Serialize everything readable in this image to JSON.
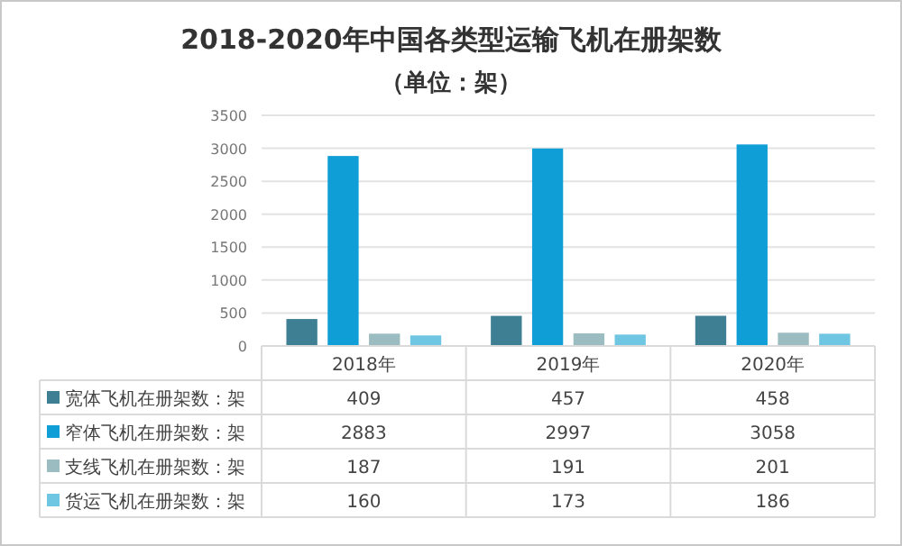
{
  "chart_data": {
    "type": "bar",
    "title": "2018-2020年中国各类型运输飞机在册架数",
    "subtitle": "（单位：架）",
    "categories": [
      "2018年",
      "2019年",
      "2020年"
    ],
    "series": [
      {
        "name": "宽体飞机在册架数：架",
        "color": "#3f7f93",
        "values": [
          409,
          457,
          458
        ]
      },
      {
        "name": "窄体飞机在册架数：架",
        "color": "#0f9ed5",
        "values": [
          2883,
          2997,
          3058
        ]
      },
      {
        "name": "支线飞机在册架数：架",
        "color": "#9bbcc0",
        "values": [
          187,
          191,
          201
        ]
      },
      {
        "name": "货运飞机在册架数：架",
        "color": "#6fc6e2",
        "values": [
          160,
          173,
          186
        ]
      }
    ],
    "ylim": [
      0,
      3500
    ],
    "yticks": [
      0,
      500,
      1000,
      1500,
      2000,
      2500,
      3000,
      3500
    ],
    "grid": "y",
    "legend": "bottom",
    "data_labels": true
  }
}
